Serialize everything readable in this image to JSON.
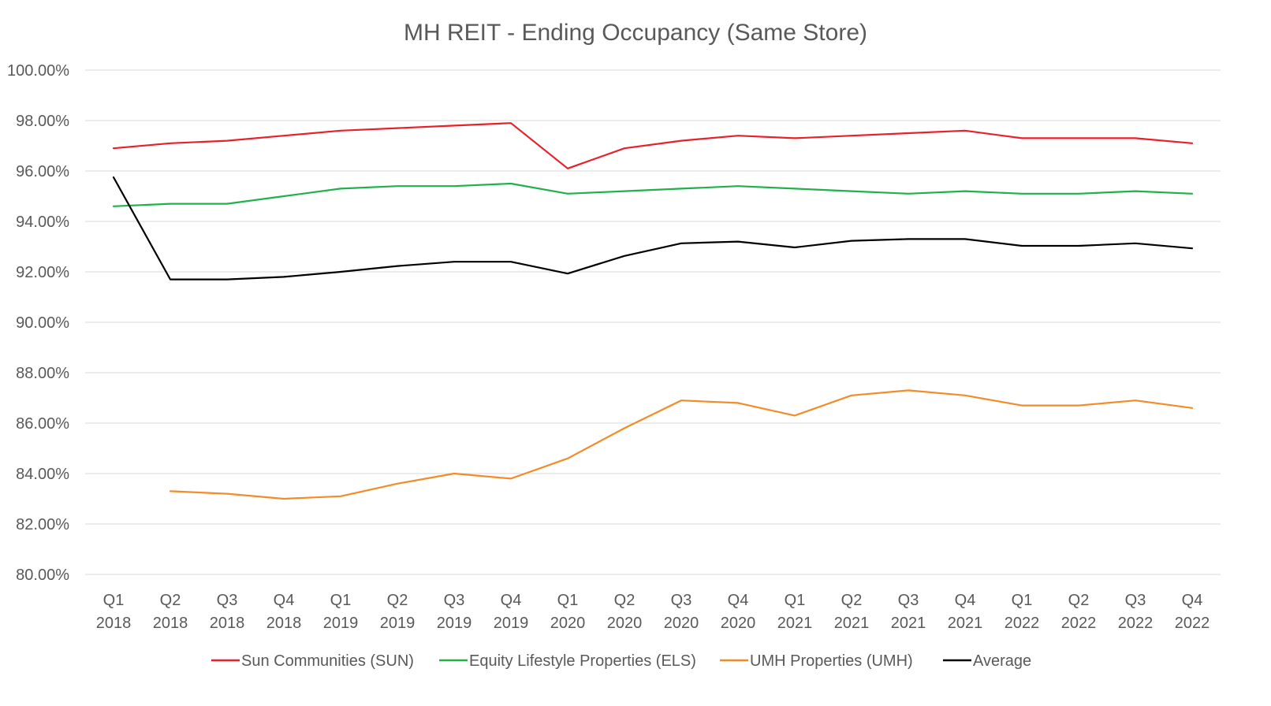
{
  "chart_data": {
    "type": "line",
    "title": "MH REIT - Ending Occupancy (Same Store)",
    "xlabel": "",
    "ylabel": "",
    "ylim": [
      80,
      100
    ],
    "ytick_step": 2,
    "ytick_format": "percent_2dp",
    "grid": "horizontal",
    "legend_position": "bottom",
    "categories": [
      [
        "Q1",
        "2018"
      ],
      [
        "Q2",
        "2018"
      ],
      [
        "Q3",
        "2018"
      ],
      [
        "Q4",
        "2018"
      ],
      [
        "Q1",
        "2019"
      ],
      [
        "Q2",
        "2019"
      ],
      [
        "Q3",
        "2019"
      ],
      [
        "Q4",
        "2019"
      ],
      [
        "Q1",
        "2020"
      ],
      [
        "Q2",
        "2020"
      ],
      [
        "Q3",
        "2020"
      ],
      [
        "Q4",
        "2020"
      ],
      [
        "Q1",
        "2021"
      ],
      [
        "Q2",
        "2021"
      ],
      [
        "Q3",
        "2021"
      ],
      [
        "Q4",
        "2021"
      ],
      [
        "Q1",
        "2022"
      ],
      [
        "Q2",
        "2022"
      ],
      [
        "Q3",
        "2022"
      ],
      [
        "Q4",
        "2022"
      ]
    ],
    "series": [
      {
        "name": "Sun Communities (SUN)",
        "color": "#e8202a",
        "values": [
          96.9,
          97.1,
          97.2,
          97.4,
          97.6,
          97.7,
          97.8,
          97.9,
          96.1,
          96.9,
          97.2,
          97.4,
          97.3,
          97.4,
          97.5,
          97.6,
          97.3,
          97.3,
          97.3,
          97.1
        ]
      },
      {
        "name": "Equity Lifestyle Properties (ELS)",
        "color": "#21b04b",
        "values": [
          94.6,
          94.7,
          94.7,
          95.0,
          95.3,
          95.4,
          95.4,
          95.5,
          95.1,
          95.2,
          95.3,
          95.4,
          95.3,
          95.2,
          95.1,
          95.2,
          95.1,
          95.1,
          95.2,
          95.1
        ]
      },
      {
        "name": "UMH Properties (UMH)",
        "color": "#f28c28",
        "values": [
          null,
          83.3,
          83.2,
          83.0,
          83.1,
          83.6,
          84.0,
          83.8,
          84.6,
          85.8,
          86.9,
          86.8,
          86.3,
          87.1,
          87.3,
          87.1,
          86.7,
          86.7,
          86.9,
          86.6
        ]
      },
      {
        "name": "Average",
        "color": "#000000",
        "values": [
          95.75,
          91.7,
          91.7,
          91.8,
          92.0,
          92.23,
          92.4,
          92.4,
          91.93,
          92.63,
          93.13,
          93.2,
          92.97,
          93.23,
          93.3,
          93.3,
          93.03,
          93.03,
          93.13,
          92.93
        ]
      }
    ]
  }
}
